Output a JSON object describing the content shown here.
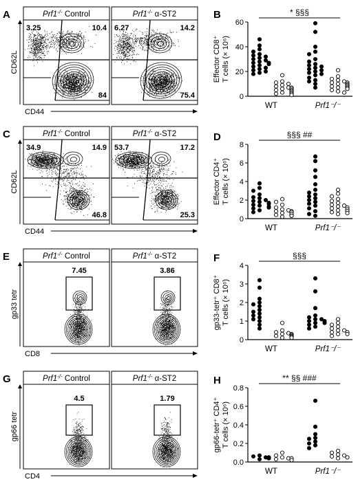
{
  "figure": {
    "flow_rows": [
      {
        "letter": "A",
        "x_label": "CD44",
        "y_label": "CD62L",
        "gate_type": "quadrant",
        "plots": [
          {
            "title_italic": "Prf1",
            "title_sup": "-/-",
            "title_rest": " Control",
            "gates": {
              "top_left": "3.25",
              "top_right": "10.4",
              "bottom_right": "84"
            }
          },
          {
            "title_italic": "Prf1",
            "title_sup": "-/-",
            "title_rest": " α-ST2",
            "gates": {
              "top_left": "6.27",
              "top_right": "14.2",
              "bottom_right": "75.4"
            }
          }
        ]
      },
      {
        "letter": "C",
        "x_label": "CD44",
        "y_label": "CD62L",
        "gate_type": "quadrant",
        "plots": [
          {
            "title_italic": "Prf1",
            "title_sup": "-/-",
            "title_rest": " Control",
            "gates": {
              "top_left": "34.9",
              "top_right": "14.9",
              "bottom_right": "46.8"
            }
          },
          {
            "title_italic": "Prf1",
            "title_sup": "-/-",
            "title_rest": " α-ST2",
            "gates": {
              "top_left": "53.7",
              "top_right": "17.2",
              "bottom_right": "25.3"
            }
          }
        ]
      },
      {
        "letter": "E",
        "x_label": "CD8",
        "y_label": "gp33 tetr",
        "gate_type": "box",
        "plots": [
          {
            "title_italic": "Prf1",
            "title_sup": "-/-",
            "title_rest": " Control",
            "gates": {
              "box": "7.45"
            }
          },
          {
            "title_italic": "Prf1",
            "title_sup": "-/-",
            "title_rest": " α-ST2",
            "gates": {
              "box": "3.86"
            }
          }
        ]
      },
      {
        "letter": "G",
        "x_label": "CD4",
        "y_label": "gp66 tetr",
        "gate_type": "box",
        "plots": [
          {
            "title_italic": "Prf1",
            "title_sup": "-/-",
            "title_rest": " Control",
            "gates": {
              "box": "4.5"
            }
          },
          {
            "title_italic": "Prf1",
            "title_sup": "-/-",
            "title_rest": " α-ST2",
            "gates": {
              "box": "1.79"
            }
          }
        ]
      }
    ],
    "colors": {
      "filled": "#000000",
      "open": "#ffffff",
      "axis": "#000000"
    }
  },
  "chart_data": [
    {
      "panel": "B",
      "type": "scatter",
      "ylabel_line1": "Effector CD8⁺",
      "ylabel_line2": "T cells (× 10⁶)",
      "ylim": [
        0,
        60
      ],
      "yticks": [
        "0",
        "20",
        "40",
        "60"
      ],
      "groups": [
        "WT",
        "Prf1⁻/⁻"
      ],
      "group_italic": [
        false,
        true
      ],
      "significance": "* §§§",
      "series": [
        {
          "group": 0,
          "marker": "filled",
          "values": [
            46,
            41,
            38,
            36,
            34,
            33,
            32,
            31,
            30,
            29,
            28,
            27,
            27,
            26,
            25,
            24,
            23,
            22,
            21,
            20,
            19,
            18
          ]
        },
        {
          "group": 0,
          "marker": "open",
          "values": [
            17,
            12,
            11,
            10,
            9,
            8,
            7,
            7,
            6,
            6,
            5,
            5,
            4,
            4,
            3,
            3,
            2,
            2,
            1
          ]
        },
        {
          "group": 1,
          "marker": "filled",
          "values": [
            59,
            52,
            40,
            36,
            34,
            30,
            28,
            26,
            25,
            24,
            23,
            22,
            21,
            20,
            19,
            18,
            17,
            15,
            13,
            12,
            10,
            7
          ]
        },
        {
          "group": 1,
          "marker": "open",
          "values": [
            21,
            16,
            14,
            13,
            12,
            11,
            11,
            10,
            10,
            9,
            9,
            8,
            8,
            7,
            7,
            6,
            6,
            5,
            4,
            3
          ]
        }
      ]
    },
    {
      "panel": "D",
      "type": "scatter",
      "ylabel_line1": "Effector CD4⁺",
      "ylabel_line2": "T cells (× 10⁶)",
      "ylim": [
        0,
        8
      ],
      "yticks": [
        "0",
        "2",
        "4",
        "6",
        "8"
      ],
      "groups": [
        "WT",
        "Prf1⁻/⁻"
      ],
      "group_italic": [
        false,
        true
      ],
      "significance": "§§§ ##",
      "series": [
        {
          "group": 0,
          "marker": "filled",
          "values": [
            3.8,
            3.3,
            3.0,
            2.6,
            2.3,
            2.2,
            2.0,
            1.9,
            1.8,
            1.7,
            1.6,
            1.5,
            1.4,
            1.3,
            1.2,
            1.1,
            0.9,
            0.7
          ]
        },
        {
          "group": 0,
          "marker": "open",
          "values": [
            2.1,
            1.8,
            1.5,
            1.2,
            1.0,
            0.9,
            0.8,
            0.8,
            0.7,
            0.6,
            0.5,
            0.5,
            0.4,
            0.3,
            0.3,
            0.2
          ]
        },
        {
          "group": 1,
          "marker": "filled",
          "values": [
            6.7,
            6.2,
            5.2,
            4.5,
            3.7,
            3.1,
            2.8,
            2.6,
            2.4,
            2.2,
            2.0,
            1.8,
            1.6,
            1.4,
            1.1,
            0.8,
            0.5,
            0.3
          ]
        },
        {
          "group": 1,
          "marker": "open",
          "values": [
            3.1,
            2.7,
            2.4,
            2.1,
            1.9,
            1.7,
            1.5,
            1.4,
            1.3,
            1.2,
            1.1,
            1.0,
            0.9,
            0.8,
            0.7,
            0.6,
            0.5
          ]
        }
      ]
    },
    {
      "panel": "F",
      "type": "scatter",
      "ylabel_line1": "gp33-tetr⁺ CD8⁺",
      "ylabel_line2": "T cells (× 10⁶)",
      "ylim": [
        0,
        4
      ],
      "yticks": [
        "0",
        "1",
        "2",
        "3",
        "4"
      ],
      "groups": [
        "WT",
        "Prf1⁻/⁻"
      ],
      "group_italic": [
        false,
        true
      ],
      "significance": "§§§",
      "series": [
        {
          "group": 0,
          "marker": "filled",
          "values": [
            3.2,
            2.8,
            2.2,
            2.0,
            1.9,
            1.8,
            1.6,
            1.5,
            1.4,
            1.3,
            1.2,
            1.1,
            1.0,
            0.8,
            0.6
          ]
        },
        {
          "group": 0,
          "marker": "open",
          "values": [
            0.9,
            0.5,
            0.4,
            0.35,
            0.3,
            0.3,
            0.25,
            0.2,
            0.2,
            0.15,
            0.1,
            0.1
          ]
        },
        {
          "group": 1,
          "marker": "filled",
          "values": [
            3.3,
            2.6,
            1.7,
            1.3,
            1.2,
            1.1,
            1.1,
            1.0,
            1.0,
            0.9,
            0.9,
            0.8,
            0.7,
            0.6
          ]
        },
        {
          "group": 1,
          "marker": "open",
          "values": [
            1.1,
            0.9,
            0.8,
            0.7,
            0.6,
            0.5,
            0.5,
            0.4,
            0.4,
            0.3,
            0.3,
            0.2
          ]
        }
      ]
    },
    {
      "panel": "H",
      "type": "scatter",
      "ylabel_line1": "gp66-tetr⁺ CD4⁺",
      "ylabel_line2": "T cells (× 10⁶)",
      "ylim": [
        0,
        0.8
      ],
      "yticks": [
        "0.0",
        "0.2",
        "0.4",
        "0.6",
        "0.8"
      ],
      "groups": [
        "WT",
        "Prf1⁻/⁻"
      ],
      "group_italic": [
        false,
        true
      ],
      "significance": "** §§ ###",
      "series": [
        {
          "group": 0,
          "marker": "filled",
          "values": [
            0.07,
            0.06,
            0.05,
            0.05,
            0.05,
            0.04,
            0.04,
            0.03
          ]
        },
        {
          "group": 0,
          "marker": "open",
          "values": [
            0.1,
            0.07,
            0.05,
            0.04,
            0.04,
            0.03,
            0.02
          ]
        },
        {
          "group": 1,
          "marker": "filled",
          "values": [
            0.66,
            0.38,
            0.3,
            0.26,
            0.25,
            0.22,
            0.2,
            0.18,
            0.15
          ]
        },
        {
          "group": 1,
          "marker": "open",
          "values": [
            0.12,
            0.1,
            0.08,
            0.07,
            0.06,
            0.05,
            0.04
          ]
        }
      ]
    }
  ]
}
